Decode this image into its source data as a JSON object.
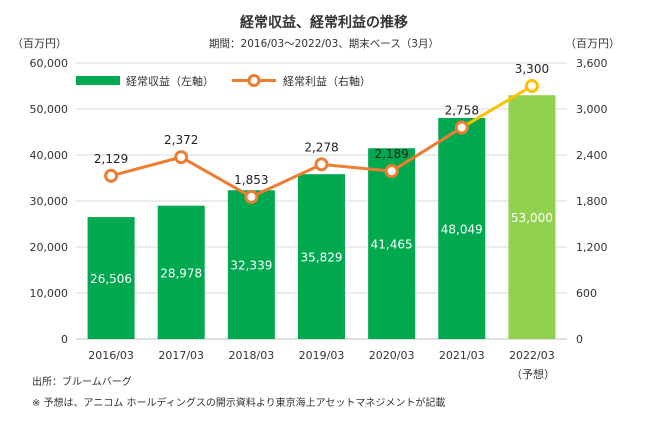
{
  "chart_data": {
    "type": "bar+line",
    "title": "経常収益、経常利益の推移",
    "subtitle": "期間：2016/03〜2022/03、期末ベース（3月）",
    "left_axis": {
      "unit": "（百万円）",
      "min": 0,
      "max": 60000,
      "ticks": [
        "60,000",
        "50,000",
        "40,000",
        "30,000",
        "20,000",
        "10,000",
        "0"
      ]
    },
    "right_axis": {
      "unit": "（百万円）",
      "min": 0,
      "max": 3600,
      "ticks": [
        "3,600",
        "3,000",
        "2,400",
        "1,800",
        "1,200",
        "600",
        "0"
      ]
    },
    "categories": [
      "2016/03",
      "2017/03",
      "2018/03",
      "2019/03",
      "2020/03",
      "2021/03",
      "2022/03"
    ],
    "forecast_label": "（予想）",
    "series": [
      {
        "name": "経常収益（左軸）",
        "axis": "left",
        "type": "bar",
        "values": [
          26506,
          28978,
          32339,
          35829,
          41465,
          48049,
          53000
        ],
        "labels": [
          "26,506",
          "28,978",
          "32,339",
          "35,829",
          "41,465",
          "48,049",
          "53,000"
        ],
        "color": "#00a84f",
        "forecast_color": "#92d050"
      },
      {
        "name": "経常利益（右軸）",
        "axis": "right",
        "type": "line",
        "values": [
          2129,
          2372,
          1853,
          2278,
          2189,
          2758,
          3300
        ],
        "labels": [
          "2,129",
          "2,372",
          "1,853",
          "2,278",
          "2,189",
          "2,758",
          "3,300"
        ],
        "color": "#ed7d31",
        "forecast_color": "#ffc000"
      }
    ],
    "forecast_index": 6
  },
  "notes": {
    "source": "出所：ブルームバーグ",
    "footnote": "※ 予想は、アニコム ホールディングスの開示資料より東京海上アセットマネジメントが記載"
  }
}
